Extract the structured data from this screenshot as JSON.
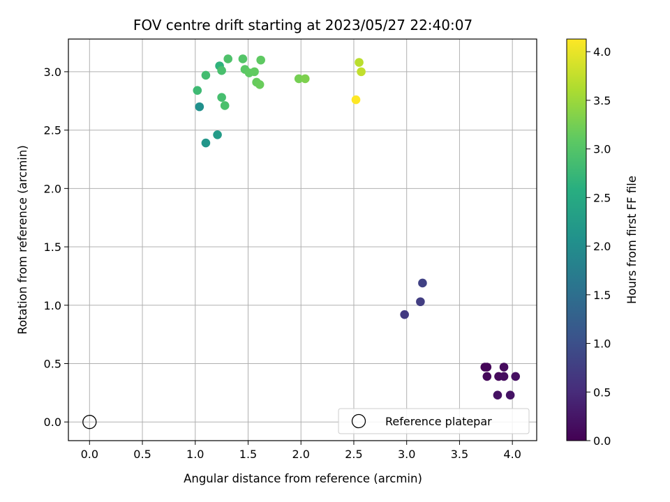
{
  "chart_data": {
    "type": "scatter",
    "title": "FOV centre drift starting at 2023/05/27 22:40:07",
    "xlabel": "Angular distance from reference (arcmin)",
    "ylabel": "Rotation from reference (arcmin)",
    "xlim": [
      -0.2,
      4.23
    ],
    "ylim": [
      -0.16,
      3.28
    ],
    "xticks": [
      "0.0",
      "0.5",
      "1.0",
      "1.5",
      "2.0",
      "2.5",
      "3.0",
      "3.5",
      "4.0"
    ],
    "yticks": [
      "0.0",
      "0.5",
      "1.0",
      "1.5",
      "2.0",
      "2.5",
      "3.0"
    ],
    "grid": true,
    "colormap": "viridis",
    "colorbar": {
      "label": "Hours from first FF file",
      "range": [
        0.0,
        4.13
      ],
      "ticks": [
        "0.0",
        "0.5",
        "1.0",
        "1.5",
        "2.0",
        "2.5",
        "3.0",
        "3.5",
        "4.0"
      ]
    },
    "legend": {
      "position": "bottom-right",
      "entries": [
        "Reference platepar"
      ]
    },
    "reference_point": {
      "x": 0.0,
      "y": 0.0,
      "label": "Reference platepar"
    },
    "series": [
      {
        "points": [
          {
            "x": 3.74,
            "y": 0.47,
            "c": 0.02
          },
          {
            "x": 3.76,
            "y": 0.47,
            "c": 0.05
          },
          {
            "x": 3.76,
            "y": 0.39,
            "c": 0.08
          },
          {
            "x": 3.87,
            "y": 0.39,
            "c": 0.1
          },
          {
            "x": 3.92,
            "y": 0.47,
            "c": 0.12
          },
          {
            "x": 3.92,
            "y": 0.39,
            "c": 0.14
          },
          {
            "x": 4.03,
            "y": 0.39,
            "c": 0.17
          },
          {
            "x": 3.86,
            "y": 0.23,
            "c": 0.19
          },
          {
            "x": 3.98,
            "y": 0.23,
            "c": 0.21
          },
          {
            "x": 2.98,
            "y": 0.92,
            "c": 0.7
          },
          {
            "x": 3.13,
            "y": 1.03,
            "c": 0.75
          },
          {
            "x": 3.15,
            "y": 1.19,
            "c": 0.8
          },
          {
            "x": 1.04,
            "y": 2.7,
            "c": 2.05
          },
          {
            "x": 1.1,
            "y": 2.39,
            "c": 2.15
          },
          {
            "x": 1.21,
            "y": 2.46,
            "c": 2.25
          },
          {
            "x": 1.23,
            "y": 3.05,
            "c": 2.65
          },
          {
            "x": 1.02,
            "y": 2.84,
            "c": 2.8
          },
          {
            "x": 1.1,
            "y": 2.97,
            "c": 2.85
          },
          {
            "x": 1.25,
            "y": 2.78,
            "c": 2.88
          },
          {
            "x": 1.25,
            "y": 3.01,
            "c": 2.9
          },
          {
            "x": 1.28,
            "y": 2.71,
            "c": 2.92
          },
          {
            "x": 1.31,
            "y": 3.11,
            "c": 2.95
          },
          {
            "x": 1.45,
            "y": 3.11,
            "c": 3.0
          },
          {
            "x": 1.47,
            "y": 3.02,
            "c": 3.05
          },
          {
            "x": 1.51,
            "y": 2.99,
            "c": 3.1
          },
          {
            "x": 1.56,
            "y": 3.0,
            "c": 3.12
          },
          {
            "x": 1.58,
            "y": 2.91,
            "c": 3.15
          },
          {
            "x": 1.61,
            "y": 2.89,
            "c": 3.17
          },
          {
            "x": 1.62,
            "y": 3.1,
            "c": 3.1
          },
          {
            "x": 1.98,
            "y": 2.94,
            "c": 3.25
          },
          {
            "x": 2.04,
            "y": 2.94,
            "c": 3.3
          },
          {
            "x": 2.55,
            "y": 3.08,
            "c": 3.7
          },
          {
            "x": 2.57,
            "y": 3.0,
            "c": 3.75
          },
          {
            "x": 2.52,
            "y": 2.76,
            "c": 4.13
          }
        ]
      }
    ]
  }
}
